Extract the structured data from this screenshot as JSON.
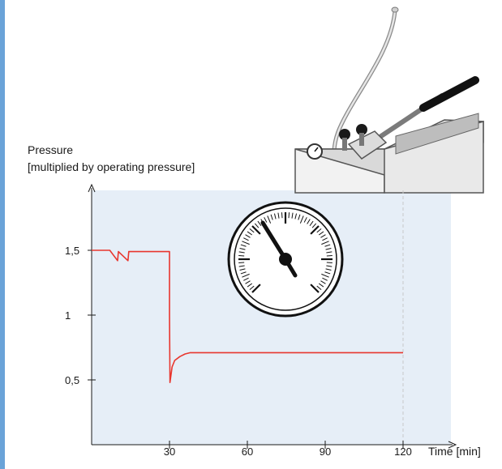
{
  "chart_data": {
    "type": "line",
    "title": "",
    "ylabel_line1": "Pressure",
    "ylabel_line2": "[multiplied by operating pressure]",
    "xlabel": "Time [min]",
    "x_ticks": [
      {
        "value": 30,
        "label": "30"
      },
      {
        "value": 60,
        "label": "60"
      },
      {
        "value": 90,
        "label": "90"
      },
      {
        "value": 120,
        "label": "120"
      }
    ],
    "y_ticks": [
      {
        "value": 0.5,
        "label": "0,5"
      },
      {
        "value": 1,
        "label": "1"
      },
      {
        "value": 1.5,
        "label": "1,5"
      }
    ],
    "xlim": [
      0,
      120
    ],
    "ylim": [
      0,
      2
    ],
    "grid": false,
    "series": [
      {
        "color": "#e8362e",
        "x": [
          0,
          7,
          10,
          10.3,
          14,
          14.3,
          30,
          30,
          30.2,
          31,
          32,
          34,
          36,
          38,
          40,
          45,
          120
        ],
        "y": [
          1.5,
          1.5,
          1.42,
          1.49,
          1.42,
          1.49,
          1.49,
          1.0,
          0.48,
          0.6,
          0.65,
          0.68,
          0.7,
          0.71,
          0.71,
          0.71,
          0.71
        ]
      }
    ],
    "reference_line": {
      "x": 120,
      "style": "dashed"
    },
    "colors": {
      "panel_background": "#e6eef7",
      "side_bar": "#6aa3d8",
      "series": "#e8362e",
      "axis": "#1a1a1a"
    },
    "illustrations": [
      "pressure-pump-illustration",
      "pressure-gauge-icon"
    ]
  }
}
